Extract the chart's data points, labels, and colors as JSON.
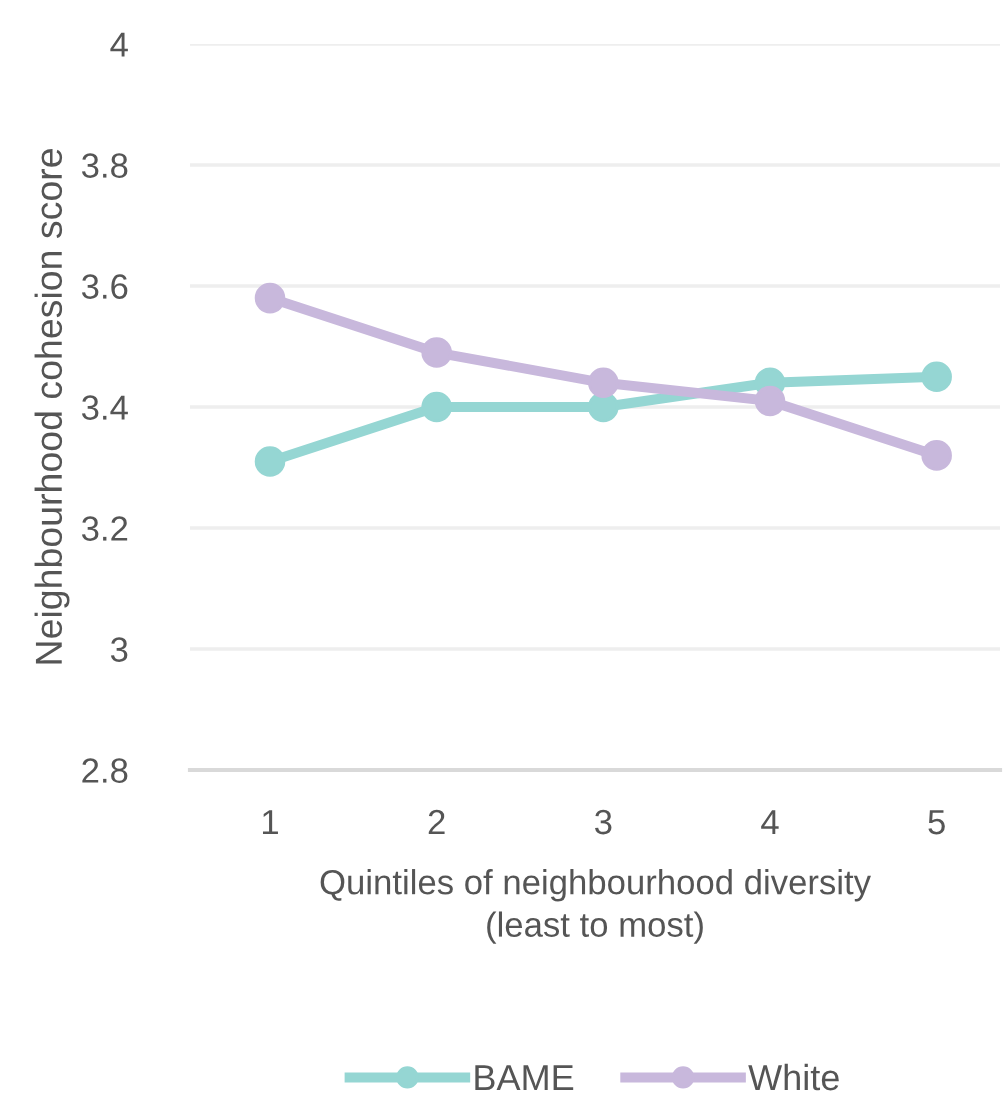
{
  "chart_data": {
    "type": "line",
    "categories": [
      "1",
      "2",
      "3",
      "4",
      "5"
    ],
    "xlabel": "Quintiles of neighbourhood diversity\n(least to most)",
    "ylabel": "Neighbourhood cohesion score",
    "series": [
      {
        "name": "BAME",
        "color": "#95d6d3",
        "values": [
          3.31,
          3.4,
          3.4,
          3.44,
          3.45
        ]
      },
      {
        "name": "White",
        "color": "#c8b8dc",
        "values": [
          3.58,
          3.49,
          3.44,
          3.41,
          3.32
        ]
      }
    ],
    "ylim": [
      2.8,
      4
    ],
    "yticks": [
      {
        "value": 2.8,
        "label": "2.8"
      },
      {
        "value": 3,
        "label": "3"
      },
      {
        "value": 3.2,
        "label": "3.2"
      },
      {
        "value": 3.4,
        "label": "3.4"
      },
      {
        "value": 3.6,
        "label": "3.6"
      },
      {
        "value": 3.8,
        "label": "3.8"
      },
      {
        "value": 4,
        "label": "4"
      }
    ],
    "grid": "y",
    "legend": "bottom",
    "marker": "circle",
    "line_style": "solid"
  }
}
